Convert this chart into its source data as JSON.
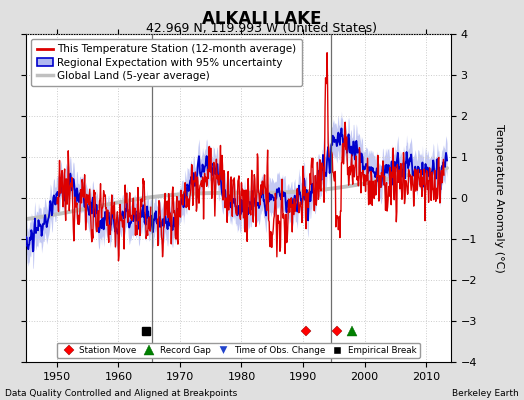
{
  "title": "ALKALI LAKE",
  "subtitle": "42.969 N, 119.993 W (United States)",
  "xlabel_left": "Data Quality Controlled and Aligned at Breakpoints",
  "xlabel_right": "Berkeley Earth",
  "ylabel": "Temperature Anomaly (°C)",
  "xlim": [
    1945,
    2014
  ],
  "ylim": [
    -4,
    4
  ],
  "yticks": [
    -4,
    -3,
    -2,
    -1,
    0,
    1,
    2,
    3,
    4
  ],
  "xticks": [
    1950,
    1960,
    1970,
    1980,
    1990,
    2000,
    2010
  ],
  "bg_color": "#e0e0e0",
  "plot_bg_color": "#ffffff",
  "station_color": "#dd0000",
  "regional_color": "#0000cc",
  "regional_fill_color": "#b0b8f0",
  "global_color": "#c0c0c0",
  "vertical_line_color": "#555555",
  "vertical_lines": [
    1965.5,
    1994.5
  ],
  "markers": {
    "station_move": [
      1990.5,
      1995.5
    ],
    "record_gap": [
      1998.0
    ],
    "obs_change": [],
    "empirical_break": [
      1964.5
    ]
  },
  "title_fontsize": 12,
  "subtitle_fontsize": 9,
  "axis_fontsize": 8,
  "tick_fontsize": 8,
  "legend_fontsize": 7.5
}
